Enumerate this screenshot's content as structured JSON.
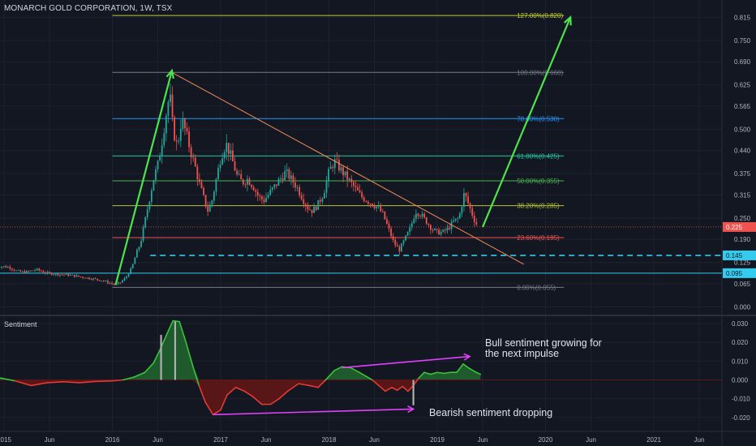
{
  "chart_data": {
    "type": "candlestick",
    "title": "MONARCH GOLD CORPORATION, 1W, TSX",
    "price_axis": {
      "ticks": [
        "0.815",
        "0.750",
        "0.690",
        "0.625",
        "0.565",
        "0.500",
        "0.440",
        "0.375",
        "0.315",
        "0.250",
        "0.190",
        "0.125",
        "0.065",
        "0.000"
      ],
      "ylim": [
        0.0,
        0.84
      ]
    },
    "time_axis": {
      "ticks": [
        "2015",
        "Jun",
        "2016",
        "Jun",
        "2017",
        "Jun",
        "2018",
        "Jun",
        "2019",
        "Jun",
        "2020",
        "Jun",
        "2021",
        "Jun"
      ]
    },
    "current_price": {
      "label": "0.225",
      "value": 0.225
    },
    "price_level_labels": [
      {
        "label": "0.145",
        "value": 0.145
      },
      {
        "label": "0.095",
        "value": 0.095
      }
    ],
    "fibonacci_levels": [
      {
        "label": "127.00%(0.820)",
        "value": 0.82,
        "color": "#c0ca33"
      },
      {
        "label": "100.00%(0.660)",
        "value": 0.66,
        "color": "#787b86"
      },
      {
        "label": "78.60%(0.530)",
        "value": 0.53,
        "color": "#2196f3"
      },
      {
        "label": "61.80%(0.425)",
        "value": 0.425,
        "color": "#26c6a4"
      },
      {
        "label": "50.00%(0.355)",
        "value": 0.355,
        "color": "#4caf50"
      },
      {
        "label": "38.20%(0.285)",
        "value": 0.285,
        "color": "#b8c22e"
      },
      {
        "label": "23.60%(0.195)",
        "value": 0.195,
        "color": "#ef5350"
      },
      {
        "label": "0.00%(0.055)",
        "value": 0.055,
        "color": "#787b86"
      }
    ],
    "price_series": [
      [
        2014.92,
        0.115
      ],
      [
        2015.05,
        0.112
      ],
      [
        2015.12,
        0.1
      ],
      [
        2015.2,
        0.098
      ],
      [
        2015.3,
        0.105
      ],
      [
        2015.4,
        0.095
      ],
      [
        2015.5,
        0.092
      ],
      [
        2015.6,
        0.09
      ],
      [
        2015.7,
        0.085
      ],
      [
        2015.8,
        0.08
      ],
      [
        2015.9,
        0.075
      ],
      [
        2015.97,
        0.068
      ],
      [
        2016.03,
        0.062
      ],
      [
        2016.08,
        0.07
      ],
      [
        2016.13,
        0.085
      ],
      [
        2016.18,
        0.11
      ],
      [
        2016.22,
        0.15
      ],
      [
        2016.26,
        0.18
      ],
      [
        2016.3,
        0.24
      ],
      [
        2016.34,
        0.3
      ],
      [
        2016.38,
        0.36
      ],
      [
        2016.42,
        0.4
      ],
      [
        2016.46,
        0.47
      ],
      [
        2016.5,
        0.55
      ],
      [
        2016.53,
        0.6
      ],
      [
        2016.56,
        0.5
      ],
      [
        2016.6,
        0.45
      ],
      [
        2016.64,
        0.53
      ],
      [
        2016.68,
        0.49
      ],
      [
        2016.72,
        0.44
      ],
      [
        2016.76,
        0.4
      ],
      [
        2016.8,
        0.35
      ],
      [
        2016.84,
        0.31
      ],
      [
        2016.88,
        0.27
      ],
      [
        2016.92,
        0.3
      ],
      [
        2016.96,
        0.36
      ],
      [
        2017.0,
        0.42
      ],
      [
        2017.05,
        0.46
      ],
      [
        2017.1,
        0.42
      ],
      [
        2017.15,
        0.37
      ],
      [
        2017.2,
        0.35
      ],
      [
        2017.25,
        0.36
      ],
      [
        2017.3,
        0.34
      ],
      [
        2017.35,
        0.31
      ],
      [
        2017.4,
        0.3
      ],
      [
        2017.45,
        0.32
      ],
      [
        2017.5,
        0.34
      ],
      [
        2017.55,
        0.36
      ],
      [
        2017.6,
        0.38
      ],
      [
        2017.65,
        0.36
      ],
      [
        2017.7,
        0.34
      ],
      [
        2017.75,
        0.31
      ],
      [
        2017.8,
        0.28
      ],
      [
        2017.85,
        0.27
      ],
      [
        2017.9,
        0.29
      ],
      [
        2017.95,
        0.32
      ],
      [
        2018.0,
        0.38
      ],
      [
        2018.05,
        0.41
      ],
      [
        2018.1,
        0.39
      ],
      [
        2018.15,
        0.37
      ],
      [
        2018.2,
        0.35
      ],
      [
        2018.25,
        0.33
      ],
      [
        2018.3,
        0.31
      ],
      [
        2018.35,
        0.3
      ],
      [
        2018.4,
        0.29
      ],
      [
        2018.45,
        0.28
      ],
      [
        2018.5,
        0.26
      ],
      [
        2018.55,
        0.22
      ],
      [
        2018.6,
        0.18
      ],
      [
        2018.65,
        0.16
      ],
      [
        2018.7,
        0.19
      ],
      [
        2018.75,
        0.22
      ],
      [
        2018.8,
        0.27
      ],
      [
        2018.85,
        0.26
      ],
      [
        2018.9,
        0.24
      ],
      [
        2018.95,
        0.22
      ],
      [
        2019.0,
        0.21
      ],
      [
        2019.05,
        0.21
      ],
      [
        2019.1,
        0.22
      ],
      [
        2019.15,
        0.24
      ],
      [
        2019.2,
        0.25
      ],
      [
        2019.25,
        0.32
      ],
      [
        2019.3,
        0.28
      ],
      [
        2019.35,
        0.24
      ],
      [
        2019.38,
        0.225
      ]
    ],
    "trendline": {
      "from": [
        2016.55,
        0.66
      ],
      "to": [
        2019.8,
        0.12
      ]
    },
    "impulse_arrows": [
      {
        "from": [
          2016.03,
          0.062
        ],
        "to": [
          2016.55,
          0.665
        ]
      },
      {
        "from": [
          2019.42,
          0.225
        ],
        "to": [
          2020.23,
          0.815
        ]
      }
    ],
    "sentiment": {
      "label": "Sentiment",
      "ticks": [
        "0.030",
        "0.020",
        "0.010",
        "0.000",
        "-0.010",
        "-0.020"
      ],
      "ylim": [
        -0.023,
        0.032
      ],
      "series": [
        [
          2014.92,
          0.0015
        ],
        [
          2015.1,
          -0.0005
        ],
        [
          2015.25,
          -0.003
        ],
        [
          2015.4,
          -0.0015
        ],
        [
          2015.55,
          -0.001
        ],
        [
          2015.7,
          -0.0015
        ],
        [
          2015.85,
          -0.0008
        ],
        [
          2016.0,
          -0.0005
        ],
        [
          2016.1,
          0.0
        ],
        [
          2016.2,
          0.0015
        ],
        [
          2016.3,
          0.004
        ],
        [
          2016.38,
          0.009
        ],
        [
          2016.44,
          0.016
        ],
        [
          2016.5,
          0.024
        ],
        [
          2016.56,
          0.0315
        ],
        [
          2016.62,
          0.031
        ],
        [
          2016.68,
          0.02
        ],
        [
          2016.74,
          0.008
        ],
        [
          2016.8,
          -0.003
        ],
        [
          2016.86,
          -0.012
        ],
        [
          2016.93,
          -0.0185
        ],
        [
          2017.0,
          -0.016
        ],
        [
          2017.06,
          -0.008
        ],
        [
          2017.14,
          -0.004
        ],
        [
          2017.22,
          -0.006
        ],
        [
          2017.3,
          -0.009
        ],
        [
          2017.38,
          -0.013
        ],
        [
          2017.46,
          -0.013
        ],
        [
          2017.54,
          -0.01
        ],
        [
          2017.62,
          -0.006
        ],
        [
          2017.72,
          -0.002
        ],
        [
          2017.82,
          -0.003
        ],
        [
          2017.9,
          -0.004
        ],
        [
          2017.97,
          0.0
        ],
        [
          2018.05,
          0.005
        ],
        [
          2018.12,
          0.007
        ],
        [
          2018.2,
          0.0065
        ],
        [
          2018.28,
          0.004
        ],
        [
          2018.34,
          0.002
        ],
        [
          2018.4,
          0.0
        ],
        [
          2018.46,
          -0.003
        ],
        [
          2018.52,
          -0.006
        ],
        [
          2018.58,
          -0.004
        ],
        [
          2018.63,
          -0.0055
        ],
        [
          2018.68,
          -0.0035
        ],
        [
          2018.73,
          -0.006
        ],
        [
          2018.78,
          -0.003
        ],
        [
          2018.83,
          0.001
        ],
        [
          2018.88,
          0.004
        ],
        [
          2018.94,
          0.003
        ],
        [
          2019.0,
          0.004
        ],
        [
          2019.06,
          0.0035
        ],
        [
          2019.12,
          0.004
        ],
        [
          2019.18,
          0.004
        ],
        [
          2019.24,
          0.0085
        ],
        [
          2019.3,
          0.006
        ],
        [
          2019.36,
          0.004
        ],
        [
          2019.4,
          0.003
        ]
      ],
      "bull_arrow": {
        "from": [
          2018.12,
          0.0065
        ],
        "to": [
          2019.3,
          0.0125
        ]
      },
      "bear_arrow": {
        "from": [
          2016.93,
          -0.0185
        ],
        "to": [
          2018.78,
          -0.0155
        ]
      },
      "annotations": [
        {
          "line1": "Bull sentiment growing for",
          "line2": "the next impulse"
        },
        {
          "line1": "Bearish sentiment dropping",
          "line2": ""
        }
      ]
    },
    "colors": {
      "background": "#131722",
      "up": "#26a69a",
      "down": "#ef5350",
      "arrow": "#4ee44e",
      "trend": "#f28c5a",
      "dashed": "#33ccee",
      "sent_pos": "#1f5e2c",
      "sent_neg": "#5c1616",
      "magenta": "#e040fb"
    }
  }
}
